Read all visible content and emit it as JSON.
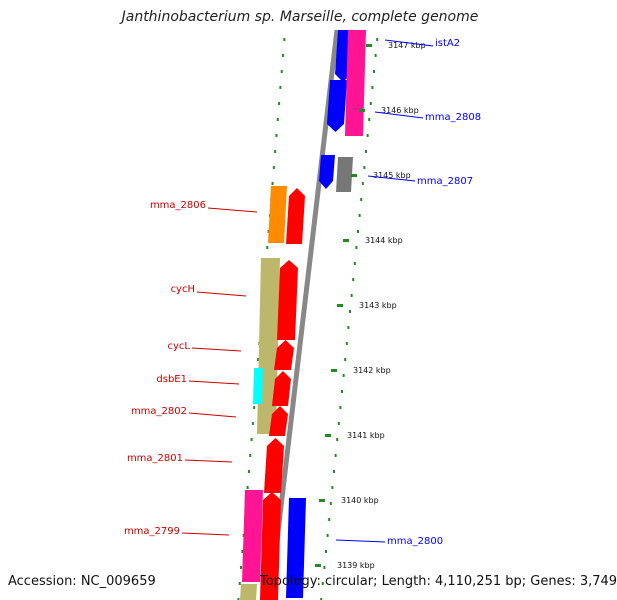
{
  "header": {
    "title": "Janthinobacterium sp. Marseille, complete genome"
  },
  "footer": {
    "accession": "Accession: NC_009659",
    "summary": "Topology: circular; Length: 4,110,251 bp; Genes: 3,749"
  },
  "colors": {
    "red": "#ff0000",
    "blue": "#0000ff",
    "magenta": "#ff1493",
    "orange": "#ff8c00",
    "khaki": "#bdb76b",
    "cyan": "#00ffff",
    "gray": "#777777",
    "label_red": "#cc0000",
    "label_blue": "#000099",
    "dots": "#228b22"
  },
  "scale": {
    "ticks": [
      {
        "label": "3147 kbp"
      },
      {
        "label": "3146 kbp"
      },
      {
        "label": "3145 kbp"
      },
      {
        "label": "3144 kbp"
      },
      {
        "label": "3143 kbp"
      },
      {
        "label": "3142 kbp"
      },
      {
        "label": "3141 kbp"
      },
      {
        "label": "3140 kbp"
      },
      {
        "label": "3139 kbp"
      }
    ]
  },
  "genes": [
    {
      "name": "istA2",
      "strand": "right",
      "color": "#0000ff"
    },
    {
      "name": "mma_2808",
      "strand": "right",
      "color": "#0000ff"
    },
    {
      "name": "mma_2807",
      "strand": "right",
      "color": "#0000ff"
    },
    {
      "name": "mma_2806",
      "strand": "left",
      "color": "#cc0000"
    },
    {
      "name": "cycH",
      "strand": "left",
      "color": "#cc0000"
    },
    {
      "name": "cycL",
      "strand": "left",
      "color": "#cc0000"
    },
    {
      "name": "dsbE1",
      "strand": "left",
      "color": "#cc0000"
    },
    {
      "name": "mma_2802",
      "strand": "left",
      "color": "#cc0000"
    },
    {
      "name": "mma_2801",
      "strand": "left",
      "color": "#cc0000"
    },
    {
      "name": "mma_2799",
      "strand": "left",
      "color": "#cc0000"
    },
    {
      "name": "mma_2800",
      "strand": "right",
      "color": "#0000ff"
    }
  ]
}
